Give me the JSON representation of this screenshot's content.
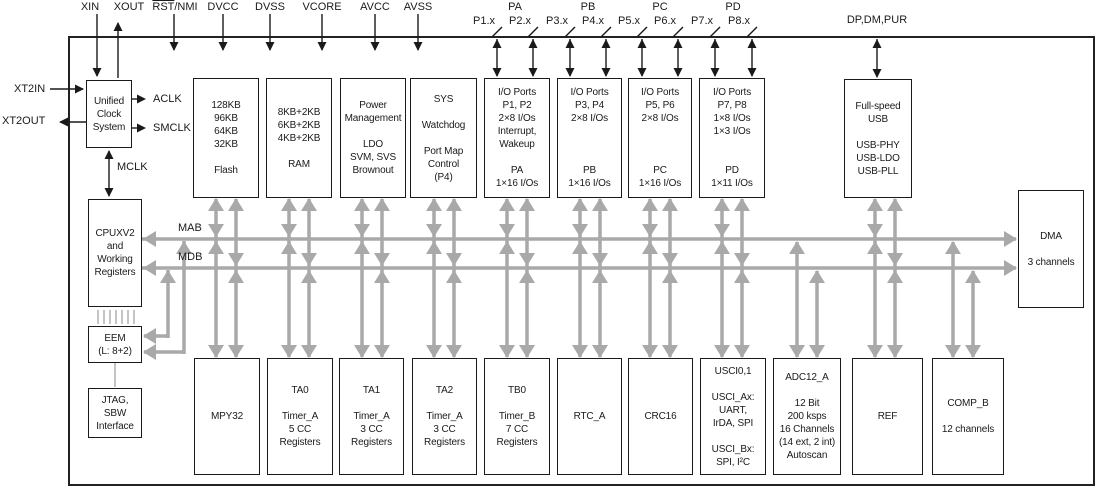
{
  "pins": {
    "xin": "XIN",
    "xout": "XOUT",
    "rst": "RST",
    "nmi": "/NMI",
    "power": [
      "DVCC",
      "DVSS",
      "VCORE",
      "AVCC",
      "AVSS"
    ],
    "xt2in": "XT2IN",
    "xt2out": "XT2OUT",
    "aclk": "ACLK",
    "smclk": "SMCLK",
    "mclk": "MCLK",
    "usb_pins": "DP,DM,PUR",
    "port_groups": [
      {
        "name": "PA",
        "pins": [
          "P1.x",
          "P2.x"
        ]
      },
      {
        "name": "PB",
        "pins": [
          "P3.x",
          "P4.x"
        ]
      },
      {
        "name": "PC",
        "pins": [
          "P5.x",
          "P6.x"
        ]
      },
      {
        "name": "PD",
        "pins": [
          "P7.x",
          "P8.x"
        ]
      }
    ]
  },
  "buses": {
    "mab": "MAB",
    "mdb": "MDB"
  },
  "blocks": {
    "ucs": {
      "lines": [
        "Unified",
        "Clock",
        "System"
      ]
    },
    "cpu": {
      "lines": [
        "CPUXV2",
        "and",
        "Working",
        "Registers"
      ]
    },
    "eem": {
      "lines": [
        "EEM",
        "(L: 8+2)"
      ]
    },
    "jtag": {
      "lines": [
        "JTAG,",
        "SBW",
        "Interface"
      ]
    },
    "flash": {
      "lines": [
        "128KB",
        "96KB",
        "64KB",
        "32KB",
        "",
        "Flash"
      ]
    },
    "ram": {
      "lines": [
        "8KB+2KB",
        "6KB+2KB",
        "4KB+2KB",
        "",
        "RAM"
      ]
    },
    "pmm": {
      "lines": [
        "Power",
        "Management",
        "",
        "LDO",
        "SVM, SVS",
        "Brownout"
      ]
    },
    "sys": {
      "lines": [
        "SYS",
        "",
        "Watchdog",
        "",
        "Port Map",
        "Control",
        "(P4)"
      ]
    },
    "port_pa": {
      "lines": [
        "I/O Ports",
        "P1, P2",
        "2×8 I/Os",
        "Interrupt,",
        "Wakeup",
        "",
        "PA",
        "1×16 I/Os"
      ]
    },
    "port_pb": {
      "lines": [
        "I/O Ports",
        "P3, P4",
        "2×8 I/Os",
        "",
        "",
        "",
        "PB",
        "1×16 I/Os"
      ]
    },
    "port_pc": {
      "lines": [
        "I/O Ports",
        "P5, P6",
        "2×8 I/Os",
        "",
        "",
        "",
        "PC",
        "1×16 I/Os"
      ]
    },
    "port_pd": {
      "lines": [
        "I/O Ports",
        "P7, P8",
        "1×8 I/Os",
        "1×3 I/Os",
        "",
        "",
        "PD",
        "1×11 I/Os"
      ]
    },
    "usb": {
      "lines": [
        "Full-speed",
        "USB",
        "",
        "USB-PHY",
        "USB-LDO",
        "USB-PLL"
      ]
    },
    "dma": {
      "lines": [
        "DMA",
        "",
        "3 channels"
      ]
    },
    "mpy32": {
      "lines": [
        "MPY32"
      ]
    },
    "ta0": {
      "lines": [
        "TA0",
        "",
        "Timer_A",
        "5 CC",
        "Registers"
      ]
    },
    "ta1": {
      "lines": [
        "TA1",
        "",
        "Timer_A",
        "3 CC",
        "Registers"
      ]
    },
    "ta2": {
      "lines": [
        "TA2",
        "",
        "Timer_A",
        "3 CC",
        "Registers"
      ]
    },
    "tb0": {
      "lines": [
        "TB0",
        "",
        "Timer_B",
        "7 CC",
        "Registers"
      ]
    },
    "rtc": {
      "lines": [
        "RTC_A"
      ]
    },
    "crc": {
      "lines": [
        "CRC16"
      ]
    },
    "usci": {
      "lines": [
        "USCI0,1",
        "",
        "USCI_Ax:",
        "UART,",
        "IrDA, SPI",
        "",
        "USCI_Bx:",
        "SPI, I²C"
      ]
    },
    "adc": {
      "lines": [
        "ADC12_A",
        "",
        "12 Bit",
        "200 ksps",
        "16 Channels",
        "(14 ext, 2 int)",
        "Autoscan"
      ]
    },
    "ref": {
      "lines": [
        "REF"
      ]
    },
    "comp": {
      "lines": [
        "COMP_B",
        "",
        "12 channels"
      ]
    }
  },
  "colors": {
    "wire_gray": "#a9a9a9",
    "line_black": "#1a1a1a"
  }
}
